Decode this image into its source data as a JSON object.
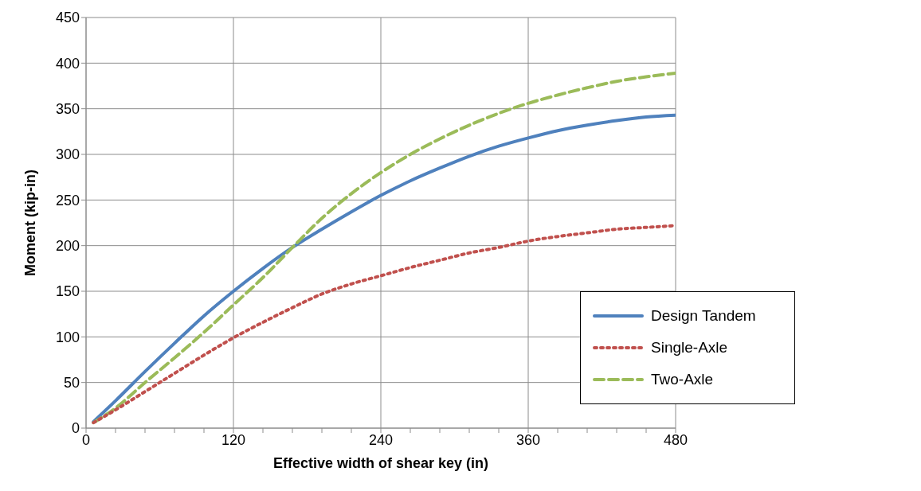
{
  "chart_data": {
    "type": "line",
    "xlabel": "Effective width of shear key (in)",
    "ylabel": "Moment (kip-in)",
    "x": [
      6,
      24,
      48,
      72,
      96,
      120,
      144,
      168,
      192,
      216,
      240,
      264,
      288,
      312,
      336,
      360,
      384,
      408,
      432,
      456,
      480
    ],
    "series": [
      {
        "name": "Design Tandem",
        "color": "#4f81bd",
        "line_style": "solid",
        "values": [
          7,
          30,
          62,
          93,
          123,
          150,
          175,
          198,
          218,
          237,
          255,
          271,
          285,
          298,
          309,
          318,
          326,
          332,
          337,
          341,
          343
        ]
      },
      {
        "name": "Single-Axle",
        "color": "#c0504d",
        "line_style": "dotted",
        "values": [
          6,
          20,
          40,
          60,
          80,
          99,
          116,
          132,
          147,
          158,
          167,
          176,
          184,
          192,
          198,
          205,
          210,
          214,
          218,
          220,
          222
        ]
      },
      {
        "name": "Two-Axle",
        "color": "#9bbb59",
        "line_style": "dashed",
        "values": [
          6,
          22,
          50,
          77,
          105,
          135,
          165,
          198,
          230,
          257,
          280,
          300,
          317,
          332,
          345,
          356,
          365,
          373,
          380,
          385,
          389
        ]
      }
    ],
    "xlim": [
      0,
      480
    ],
    "xticks": [
      0,
      {
        "value": 24,
        "label": null
      },
      {
        "value": 48,
        "label": null
      },
      {
        "value": 72,
        "label": null
      },
      {
        "value": 96,
        "label": null
      },
      120,
      {
        "value": 144,
        "label": null
      },
      {
        "value": 168,
        "label": null
      },
      {
        "value": 192,
        "label": null
      },
      {
        "value": 216,
        "label": null
      },
      240,
      {
        "value": 264,
        "label": null
      },
      {
        "value": 288,
        "label": null
      },
      {
        "value": 312,
        "label": null
      },
      {
        "value": 336,
        "label": null
      },
      360,
      {
        "value": 384,
        "label": null
      },
      {
        "value": 408,
        "label": null
      },
      {
        "value": 432,
        "label": null
      },
      {
        "value": 456,
        "label": null
      },
      480
    ],
    "ylim": [
      0,
      450
    ],
    "yticks": [
      0,
      50,
      100,
      150,
      200,
      250,
      300,
      350,
      400,
      450
    ],
    "grid": true,
    "legend": "bottom right",
    "marker": "none"
  }
}
